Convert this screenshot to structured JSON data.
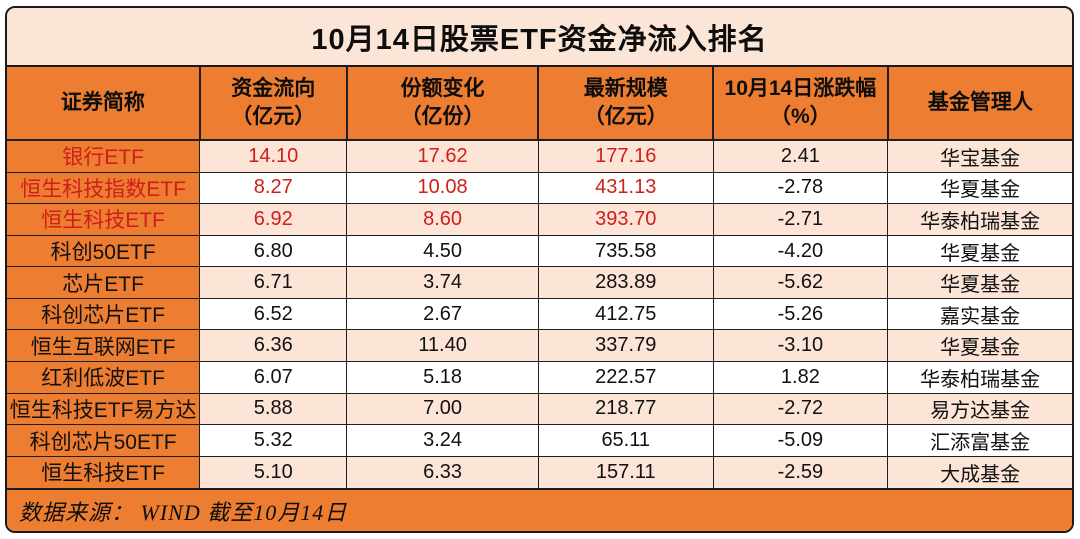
{
  "window": {
    "title": "10月14日股票ETF资金净流入排名"
  },
  "table": {
    "headers": [
      "证券简称",
      "资金流向\n（亿元）",
      "份额变化\n（亿份）",
      "最新规模\n（亿元）",
      "10月14日涨跌幅\n（%）",
      "基金管理人"
    ]
  },
  "footer": {
    "text": "数据来源： WIND  截至10月14日"
  },
  "colors": {
    "orange": "#ED7D31",
    "light_pink": "#FBE5D6",
    "row_pink": "#FCE4D6",
    "red_text": "#CF1F1A",
    "border": "#1A1A1A"
  },
  "chart_data": {
    "type": "table",
    "title": "10月14日股票ETF资金净流入排名",
    "columns": [
      "证券简称",
      "资金流向（亿元）",
      "份额变化（亿份）",
      "最新规模（亿元）",
      "10月14日涨跌幅（%）",
      "基金管理人"
    ],
    "rows": [
      [
        "银行ETF",
        "14.10",
        "17.62",
        "177.16",
        "2.41",
        "华宝基金"
      ],
      [
        "恒生科技指数ETF",
        "8.27",
        "10.08",
        "431.13",
        "-2.78",
        "华夏基金"
      ],
      [
        "恒生科技ETF",
        "6.92",
        "8.60",
        "393.70",
        "-2.71",
        "华泰柏瑞基金"
      ],
      [
        "科创50ETF",
        "6.80",
        "4.50",
        "735.58",
        "-4.20",
        "华夏基金"
      ],
      [
        "芯片ETF",
        "6.71",
        "3.74",
        "283.89",
        "-5.62",
        "华夏基金"
      ],
      [
        "科创芯片ETF",
        "6.52",
        "2.67",
        "412.75",
        "-5.26",
        "嘉实基金"
      ],
      [
        "恒生互联网ETF",
        "6.36",
        "11.40",
        "337.79",
        "-3.10",
        "华夏基金"
      ],
      [
        "红利低波ETF",
        "6.07",
        "5.18",
        "222.57",
        "1.82",
        "华泰柏瑞基金"
      ],
      [
        "恒生科技ETF易方达",
        "5.88",
        "7.00",
        "218.77",
        "-2.72",
        "易方达基金"
      ],
      [
        "科创芯片50ETF",
        "5.32",
        "3.24",
        "65.11",
        "-5.09",
        "汇添富基金"
      ],
      [
        "恒生科技ETF",
        "5.10",
        "6.33",
        "157.11",
        "-2.59",
        "大成基金"
      ]
    ],
    "highlight_rows": [
      0,
      1,
      2
    ],
    "highlight_columns": [
      0,
      1,
      2,
      3
    ],
    "source_note": "数据来源： WIND  截至10月14日"
  }
}
